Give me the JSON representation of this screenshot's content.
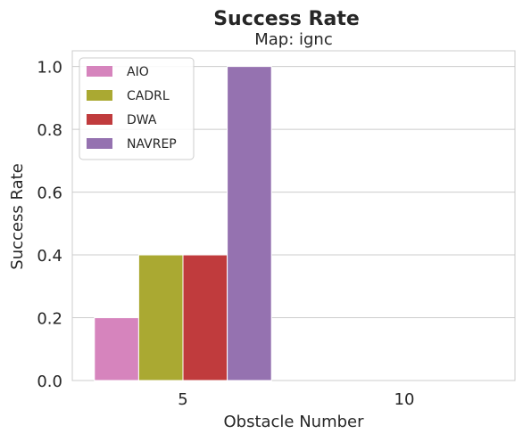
{
  "chart_data": {
    "type": "bar",
    "title": "Success Rate",
    "subtitle": "Map: ignc",
    "xlabel": "Obstacle Number",
    "ylabel": "Success Rate",
    "categories": [
      "5",
      "10"
    ],
    "ylim": [
      0,
      1.05
    ],
    "yticks": [
      "0.0",
      "0.2",
      "0.4",
      "0.6",
      "0.8",
      "1.0"
    ],
    "grid": true,
    "legend_position": "top-left",
    "series": [
      {
        "name": "AIO",
        "color": "#d684bd",
        "values": [
          0.2,
          null
        ]
      },
      {
        "name": "CADRL",
        "color": "#aaa932",
        "values": [
          0.4,
          null
        ]
      },
      {
        "name": "DWA",
        "color": "#c03b3d",
        "values": [
          0.4,
          null
        ]
      },
      {
        "name": "NAVREP",
        "color": "#9572b0",
        "values": [
          1.0,
          null
        ]
      }
    ]
  }
}
